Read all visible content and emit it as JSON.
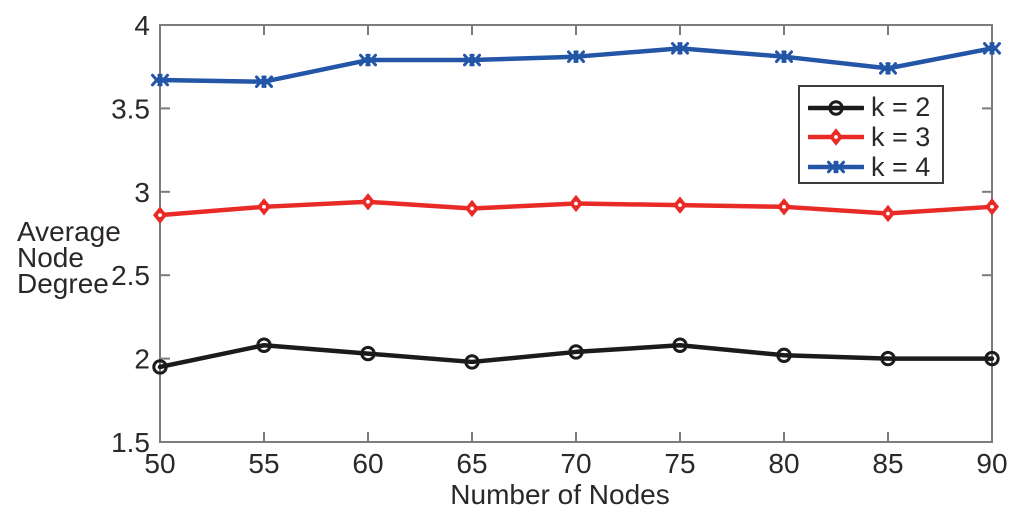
{
  "chart_data": {
    "type": "line",
    "title": "",
    "xlabel": "Number of Nodes",
    "ylabel": "Average Node Degree",
    "ylabel_lines": [
      "Average",
      "Node",
      "Degree"
    ],
    "x": [
      50,
      55,
      60,
      65,
      70,
      75,
      80,
      85,
      90
    ],
    "xlim": [
      50,
      90
    ],
    "ylim": [
      1.5,
      4
    ],
    "xticks": [
      50,
      55,
      60,
      65,
      70,
      75,
      80,
      85,
      90
    ],
    "yticks": [
      1.5,
      2,
      2.5,
      3,
      3.5,
      4
    ],
    "grid": false,
    "legend_position": "upper-right-inside",
    "series": [
      {
        "name": "k = 2",
        "color": "#1d1a1b",
        "marker": "circle",
        "values": [
          1.95,
          2.08,
          2.03,
          1.98,
          2.04,
          2.08,
          2.02,
          2.0,
          2.0
        ]
      },
      {
        "name": "k = 3",
        "color": "#e92b28",
        "marker": "diamond",
        "values": [
          2.86,
          2.91,
          2.94,
          2.9,
          2.93,
          2.92,
          2.91,
          2.87,
          2.91
        ]
      },
      {
        "name": "k = 4",
        "color": "#2356a7",
        "marker": "xx",
        "values": [
          3.67,
          3.66,
          3.79,
          3.79,
          3.81,
          3.86,
          3.81,
          3.74,
          3.86
        ]
      }
    ]
  },
  "colors": {
    "axis_frame": "#7c7c7c",
    "tick": "#7c7c7c",
    "text": "#2b2827",
    "legend_border": "#3f3c3c",
    "background": "#ffffff"
  }
}
